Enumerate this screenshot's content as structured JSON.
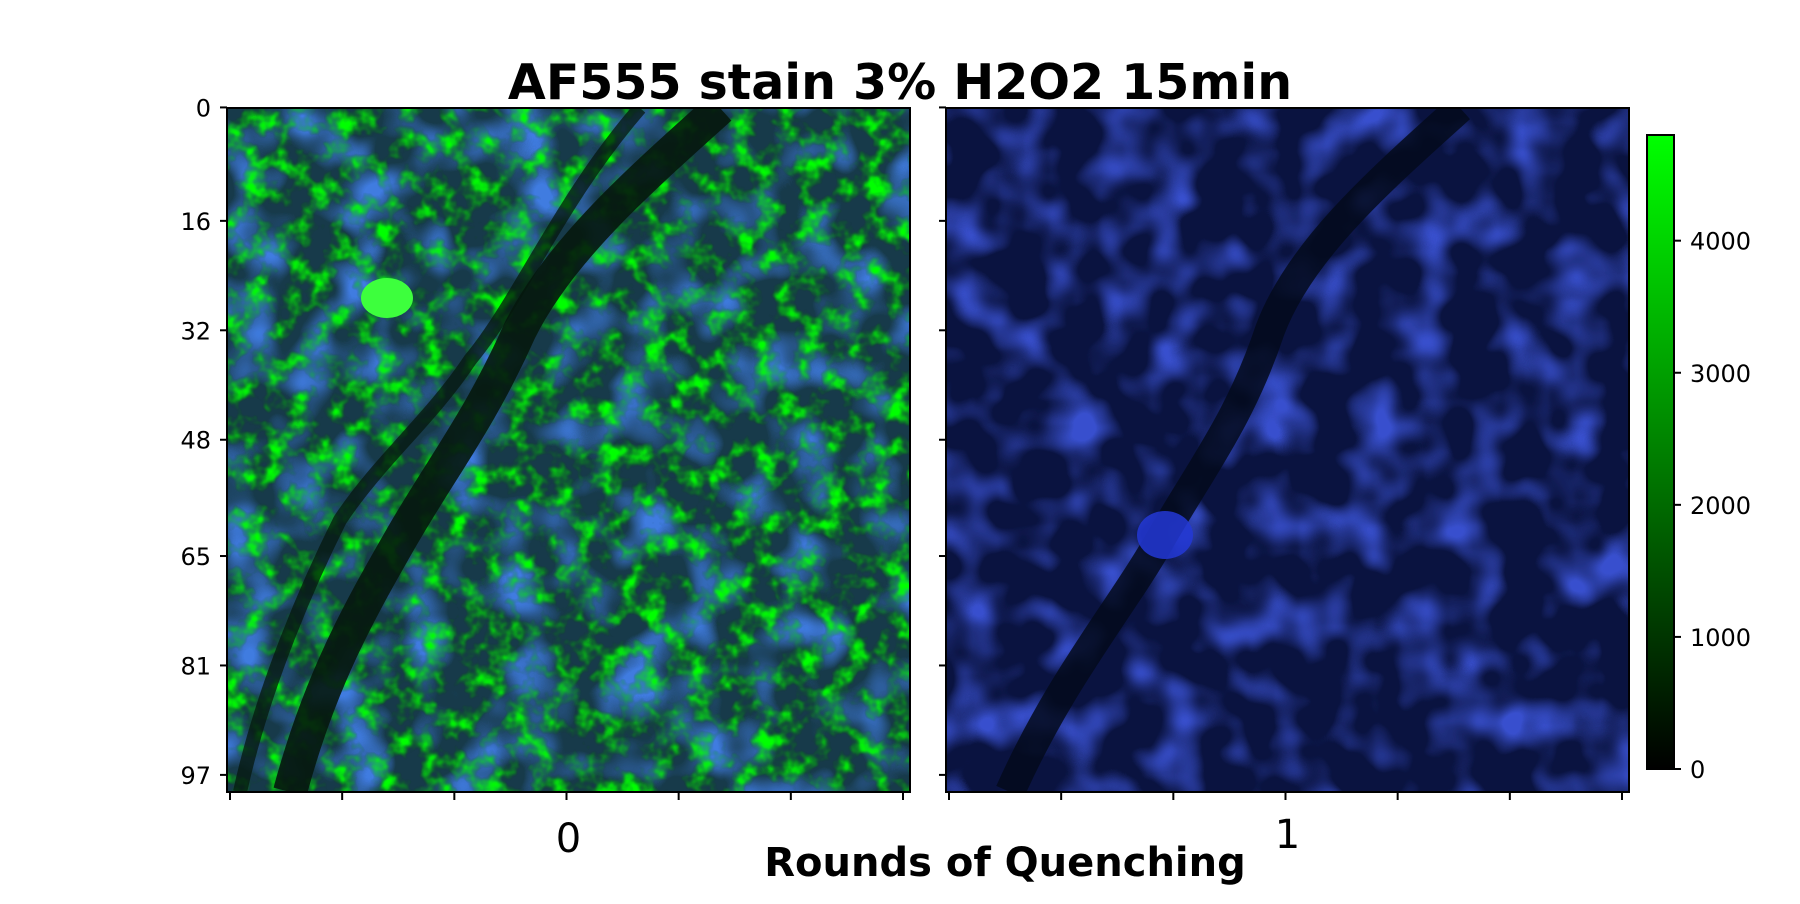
{
  "chart_data": {
    "type": "heatmap",
    "title": "AF555 stain 3% H2O2 15min",
    "xlabel": "Rounds of Quenching",
    "ylabel": "",
    "panels": [
      {
        "label": "0",
        "description_channels": [
          "green",
          "blue"
        ],
        "green_intensity": "high"
      },
      {
        "label": "1",
        "description_channels": [
          "green",
          "blue"
        ],
        "green_intensity": "low"
      }
    ],
    "yticks": [
      "0",
      "16",
      "32",
      "48",
      "65",
      "81",
      "97"
    ],
    "x_minor_ticks_per_panel": 7,
    "colorbar": {
      "ticks": [
        0,
        1000,
        2000,
        3000,
        4000
      ],
      "range": [
        0,
        4800
      ],
      "colors": [
        "#000000",
        "#00ff00"
      ]
    },
    "colors": {
      "nuclei": "#1e3fbf",
      "stain": "#2bd92b",
      "background": "#0d2a16"
    }
  }
}
